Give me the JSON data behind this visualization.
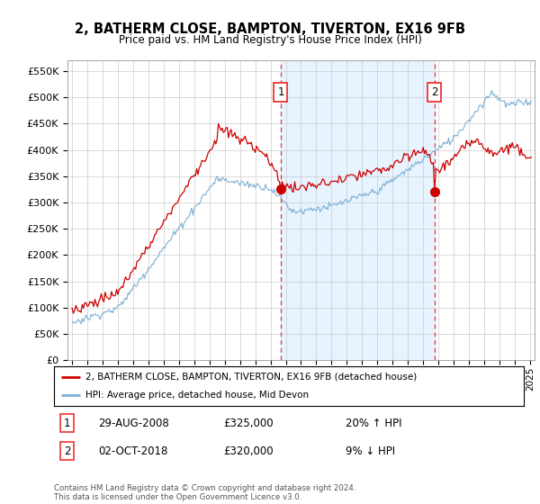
{
  "title": "2, BATHERM CLOSE, BAMPTON, TIVERTON, EX16 9FB",
  "subtitle": "Price paid vs. HM Land Registry's House Price Index (HPI)",
  "legend_property": "2, BATHERM CLOSE, BAMPTON, TIVERTON, EX16 9FB (detached house)",
  "legend_hpi": "HPI: Average price, detached house, Mid Devon",
  "sale1_label": "1",
  "sale1_date": "29-AUG-2008",
  "sale1_price": "£325,000",
  "sale1_hpi": "20% ↑ HPI",
  "sale1_year": 2008.67,
  "sale1_price_val": 325000,
  "sale2_label": "2",
  "sale2_date": "02-OCT-2018",
  "sale2_price": "£320,000",
  "sale2_hpi": "9% ↓ HPI",
  "sale2_year": 2018.75,
  "sale2_price_val": 320000,
  "footer": "Contains HM Land Registry data © Crown copyright and database right 2024.\nThis data is licensed under the Open Government Licence v3.0.",
  "property_color": "#cc0000",
  "hpi_color": "#7ab0d4",
  "vline_color": "#ee3333",
  "shade_color": "#ddeeff",
  "ylim": [
    0,
    570000
  ],
  "yticks": [
    0,
    50000,
    100000,
    150000,
    200000,
    250000,
    300000,
    350000,
    400000,
    450000,
    500000,
    550000
  ],
  "xlim_start": 1994.7,
  "xlim_end": 2025.3,
  "background_color": "#ffffff",
  "grid_color": "#cccccc"
}
